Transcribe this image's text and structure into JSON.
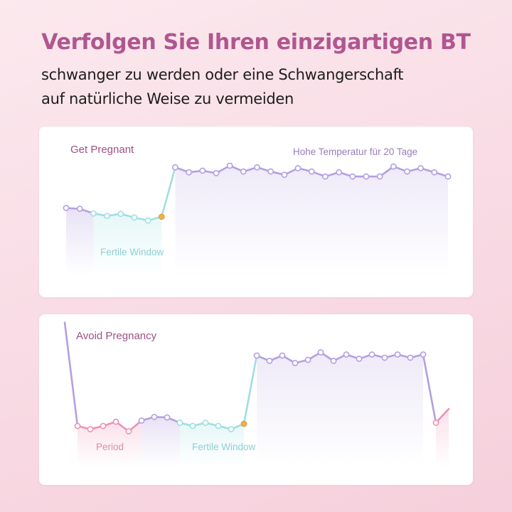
{
  "header": {
    "title": "Verfolgen Sie Ihren einzigartigen BT",
    "subtitle_line1": "schwanger zu werden oder eine Schwangerschaft",
    "subtitle_line2": "auf natürliche Weise zu vermeiden"
  },
  "colors": {
    "title": "#b0568f",
    "chart_title": "#a04f86",
    "lavender": "#b3a0e0",
    "teal": "#9fdfe0",
    "pink": "#ec92b4",
    "ovulation": "#f1b24a",
    "high_temp_label": "#9a7cba",
    "fertile_label": "#8fcfd2",
    "period_label": "#d590aa"
  },
  "chart_data": [
    {
      "type": "line",
      "title": "Get Pregnant",
      "annotations": {
        "high_temperature": "Hohe Temperatur für 20 Tage",
        "fertile_window": "Fertile Window"
      },
      "x": [
        1,
        2,
        3,
        4,
        5,
        6,
        7,
        8,
        9,
        10,
        11,
        12,
        13,
        14,
        15,
        16,
        17,
        18,
        19,
        20,
        21,
        22,
        23,
        24,
        25,
        26,
        27,
        28,
        29
      ],
      "values": [
        3.0,
        2.9,
        2.35,
        2.05,
        2.3,
        1.85,
        1.5,
        1.95,
        7.9,
        7.3,
        7.5,
        7.2,
        8.1,
        7.4,
        7.9,
        7.4,
        7.0,
        7.8,
        7.4,
        6.8,
        7.3,
        6.8,
        6.8,
        6.8,
        8.0,
        7.4,
        7.8,
        7.3,
        6.8
      ],
      "segments": [
        {
          "phase": "pre",
          "from": 1,
          "to": 3
        },
        {
          "phase": "fertile",
          "from": 3,
          "to": 8
        },
        {
          "phase": "rise",
          "from": 8,
          "to": 9
        },
        {
          "phase": "high",
          "from": 9,
          "to": 29
        }
      ],
      "ovulation_point": 8,
      "ylim": [
        0,
        10
      ],
      "grid": false
    },
    {
      "type": "line",
      "title": "Avoid Pregnancy",
      "annotations": {
        "period": "Period",
        "fertile_window": "Fertile Window"
      },
      "x": [
        1,
        2,
        3,
        4,
        5,
        6,
        7,
        8,
        9,
        10,
        11,
        12,
        13,
        14,
        15,
        16,
        17,
        18,
        19,
        20,
        21,
        22,
        23,
        24,
        25,
        26,
        27,
        28,
        29,
        30,
        31
      ],
      "values": [
        11.0,
        1.3,
        1.0,
        1.3,
        1.7,
        0.8,
        1.8,
        2.15,
        2.1,
        1.6,
        1.3,
        1.6,
        1.3,
        1.0,
        1.5,
        7.9,
        7.4,
        7.9,
        7.2,
        7.5,
        8.2,
        7.4,
        8.0,
        7.6,
        8.0,
        7.7,
        8.0,
        7.7,
        8.0,
        1.6,
        2.9
      ],
      "segments": [
        {
          "phase": "drop",
          "from": 1,
          "to": 2
        },
        {
          "phase": "period",
          "from": 2,
          "to": 7
        },
        {
          "phase": "pre",
          "from": 7,
          "to": 10
        },
        {
          "phase": "fertile",
          "from": 10,
          "to": 15
        },
        {
          "phase": "rise",
          "from": 15,
          "to": 16
        },
        {
          "phase": "high",
          "from": 16,
          "to": 29
        },
        {
          "phase": "drop",
          "from": 29,
          "to": 30
        },
        {
          "phase": "period",
          "from": 30,
          "to": 31
        }
      ],
      "ovulation_point": 15,
      "ylim": [
        0,
        12
      ],
      "grid": false
    }
  ]
}
